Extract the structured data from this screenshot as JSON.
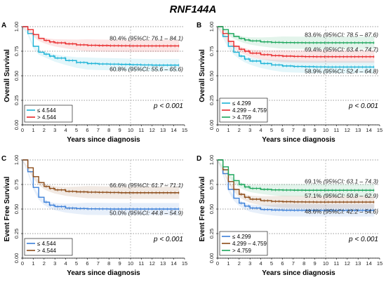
{
  "figure_title": "RNF144A",
  "chart_data": [
    {
      "panel": "A",
      "type": "line",
      "ylabel": "Overall Survival",
      "xlabel": "Years since diagnosis",
      "xlim": [
        0,
        15
      ],
      "ylim": [
        0,
        1
      ],
      "xticks": [
        "0",
        "1",
        "2",
        "3",
        "4",
        "5",
        "6",
        "7",
        "8",
        "9",
        "10",
        "11",
        "12",
        "13",
        "14",
        "15"
      ],
      "yticks": [
        "0.00",
        "0.25",
        "0.50",
        "0.75",
        "1.00"
      ],
      "pvalue": "p < 0.001",
      "legend_position": "bottom-left",
      "series": [
        {
          "name": "≤ 4.544",
          "color": "#1ab2d6",
          "x": [
            0,
            0.5,
            1,
            1.5,
            2,
            2.5,
            3,
            4,
            5,
            6,
            7,
            8,
            9,
            10,
            11,
            12,
            13,
            14,
            14.5
          ],
          "y": [
            1.0,
            0.93,
            0.8,
            0.74,
            0.72,
            0.7,
            0.68,
            0.655,
            0.635,
            0.625,
            0.62,
            0.618,
            0.616,
            0.612,
            0.61,
            0.608,
            0.608,
            0.608,
            0.608
          ]
        },
        {
          "name": "> 4.544",
          "color": "#e8282a",
          "x": [
            0,
            0.5,
            1,
            1.5,
            2,
            2.5,
            3,
            4,
            5,
            6,
            7,
            8,
            9,
            10,
            11,
            12,
            13,
            14,
            14.5
          ],
          "y": [
            1.0,
            0.97,
            0.92,
            0.88,
            0.86,
            0.845,
            0.835,
            0.825,
            0.815,
            0.81,
            0.808,
            0.806,
            0.805,
            0.804,
            0.804,
            0.804,
            0.804,
            0.804,
            0.804
          ]
        }
      ],
      "annotations": [
        {
          "pct": "80.4%",
          "ci": "(95%CI: 76.1 – 84.1)",
          "color": "#e8282a",
          "y": 0.86
        },
        {
          "pct": "60.8%",
          "ci": "(95%CI: 55.6 – 65.6)",
          "color": "#1ab2d6",
          "y": 0.545
        }
      ]
    },
    {
      "panel": "B",
      "type": "line",
      "ylabel": "Overall Survival",
      "xlabel": "Years since diagnosis",
      "xlim": [
        0,
        15
      ],
      "ylim": [
        0,
        1
      ],
      "xticks": [
        "0",
        "1",
        "2",
        "3",
        "4",
        "5",
        "6",
        "7",
        "8",
        "9",
        "10",
        "11",
        "12",
        "13",
        "14",
        "15"
      ],
      "yticks": [
        "0.00",
        "0.25",
        "0.50",
        "0.75",
        "1.00"
      ],
      "pvalue": "p < 0.001",
      "legend_position": "bottom-left",
      "series": [
        {
          "name": "≤ 4.299",
          "color": "#1ab2d6",
          "x": [
            0,
            0.5,
            1,
            1.5,
            2,
            2.5,
            3,
            4,
            5,
            6,
            7,
            8,
            9,
            10,
            11,
            12,
            13,
            14,
            14.5
          ],
          "y": [
            1.0,
            0.9,
            0.8,
            0.74,
            0.7,
            0.67,
            0.65,
            0.625,
            0.61,
            0.6,
            0.595,
            0.592,
            0.59,
            0.589,
            0.589,
            0.589,
            0.589,
            0.589,
            0.589
          ]
        },
        {
          "name": "4.299 – 4.759",
          "color": "#e8282a",
          "x": [
            0,
            0.5,
            1,
            1.5,
            2,
            2.5,
            3,
            4,
            5,
            6,
            7,
            8,
            9,
            10,
            11,
            12,
            13,
            14,
            14.5
          ],
          "y": [
            1.0,
            0.93,
            0.85,
            0.8,
            0.77,
            0.75,
            0.73,
            0.715,
            0.705,
            0.7,
            0.697,
            0.695,
            0.694,
            0.694,
            0.694,
            0.694,
            0.694,
            0.694,
            0.694
          ]
        },
        {
          "name": "> 4.759",
          "color": "#1aa55a",
          "x": [
            0,
            0.5,
            1,
            1.5,
            2,
            2.5,
            3,
            4,
            5,
            6,
            7,
            8,
            9,
            10,
            11,
            12,
            13,
            14,
            14.5
          ],
          "y": [
            1.0,
            0.97,
            0.93,
            0.9,
            0.88,
            0.865,
            0.855,
            0.845,
            0.84,
            0.838,
            0.837,
            0.836,
            0.836,
            0.836,
            0.836,
            0.836,
            0.836,
            0.836,
            0.836
          ]
        }
      ],
      "annotations": [
        {
          "pct": "83.6%",
          "ci": "(95%CI: 78.5 – 87.6)",
          "color": "#1aa55a",
          "y": 0.895
        },
        {
          "pct": "69.4%",
          "ci": "(95%CI: 63.4 – 74.7)",
          "color": "#e8282a",
          "y": 0.745
        },
        {
          "pct": "58.9%",
          "ci": "(95%CI: 52.4 – 64.8)",
          "color": "#1ab2d6",
          "y": 0.525
        }
      ]
    },
    {
      "panel": "C",
      "type": "line",
      "ylabel": "Event Free Survival",
      "xlabel": "Years since diagnosis",
      "xlim": [
        0,
        15
      ],
      "ylim": [
        0,
        1
      ],
      "xticks": [
        "0",
        "1",
        "2",
        "3",
        "4",
        "5",
        "6",
        "7",
        "8",
        "9",
        "10",
        "11",
        "12",
        "13",
        "14",
        "15"
      ],
      "yticks": [
        "0.00",
        "0.25",
        "0.50",
        "0.75",
        "1.00"
      ],
      "pvalue": "p < 0.001",
      "legend_position": "bottom-left",
      "series": [
        {
          "name": "≤ 4.544",
          "color": "#3a7fd8",
          "x": [
            0,
            0.5,
            1,
            1.5,
            2,
            2.5,
            3,
            4,
            5,
            6,
            7,
            8,
            9,
            10,
            11,
            12,
            13,
            14,
            14.5
          ],
          "y": [
            1.0,
            0.88,
            0.72,
            0.62,
            0.57,
            0.54,
            0.525,
            0.51,
            0.505,
            0.502,
            0.501,
            0.5,
            0.5,
            0.5,
            0.5,
            0.5,
            0.5,
            0.5,
            0.5
          ]
        },
        {
          "name": "> 4.544",
          "color": "#8b4a16",
          "x": [
            0,
            0.5,
            1,
            1.5,
            2,
            2.5,
            3,
            4,
            5,
            6,
            7,
            8,
            9,
            10,
            11,
            12,
            13,
            14,
            14.5
          ],
          "y": [
            1.0,
            0.92,
            0.83,
            0.77,
            0.73,
            0.71,
            0.695,
            0.68,
            0.675,
            0.672,
            0.67,
            0.668,
            0.666,
            0.666,
            0.666,
            0.666,
            0.666,
            0.666,
            0.666
          ]
        }
      ],
      "annotations": [
        {
          "pct": "66.6%",
          "ci": "(95%CI: 61.7 – 71.1)",
          "color": "#8b4a16",
          "y": 0.72
        },
        {
          "pct": "50.0%",
          "ci": "(95%CI: 44.8 – 54.9)",
          "color": "#3a7fd8",
          "y": 0.44
        }
      ]
    },
    {
      "panel": "D",
      "type": "line",
      "ylabel": "Event Free Survival",
      "xlabel": "Years since diagnosis",
      "xlim": [
        0,
        15
      ],
      "ylim": [
        0,
        1
      ],
      "xticks": [
        "0",
        "1",
        "2",
        "3",
        "4",
        "5",
        "6",
        "7",
        "8",
        "9",
        "10",
        "11",
        "12",
        "13",
        "14",
        "15"
      ],
      "yticks": [
        "0.00",
        "0.25",
        "0.50",
        "0.75",
        "1.00"
      ],
      "pvalue": "p < 0.001",
      "legend_position": "bottom-left",
      "series": [
        {
          "name": "≤ 4.299",
          "color": "#3a7fd8",
          "x": [
            0,
            0.5,
            1,
            1.5,
            2,
            2.5,
            3,
            4,
            5,
            6,
            7,
            8,
            9,
            10,
            11,
            12,
            13,
            14,
            14.5
          ],
          "y": [
            1.0,
            0.86,
            0.7,
            0.61,
            0.56,
            0.53,
            0.51,
            0.495,
            0.49,
            0.488,
            0.487,
            0.486,
            0.486,
            0.486,
            0.486,
            0.486,
            0.486,
            0.486,
            0.486
          ]
        },
        {
          "name": "4.299 – 4.759",
          "color": "#8b4a16",
          "x": [
            0,
            0.5,
            1,
            1.5,
            2,
            2.5,
            3,
            4,
            5,
            6,
            7,
            8,
            9,
            10,
            11,
            12,
            13,
            14,
            14.5
          ],
          "y": [
            1.0,
            0.9,
            0.78,
            0.7,
            0.65,
            0.62,
            0.6,
            0.585,
            0.578,
            0.575,
            0.573,
            0.572,
            0.571,
            0.571,
            0.571,
            0.571,
            0.571,
            0.571,
            0.571
          ]
        },
        {
          "name": "> 4.759",
          "color": "#1aa55a",
          "x": [
            0,
            0.5,
            1,
            1.5,
            2,
            2.5,
            3,
            4,
            5,
            6,
            7,
            8,
            9,
            10,
            11,
            12,
            13,
            14,
            14.5
          ],
          "y": [
            1.0,
            0.93,
            0.85,
            0.79,
            0.75,
            0.725,
            0.71,
            0.7,
            0.695,
            0.693,
            0.692,
            0.691,
            0.691,
            0.691,
            0.691,
            0.691,
            0.691,
            0.691,
            0.691
          ]
        }
      ],
      "annotations": [
        {
          "pct": "69.1%",
          "ci": "(95%CI: 63.1 – 74.3)",
          "color": "#1aa55a",
          "y": 0.76
        },
        {
          "pct": "57.1%",
          "ci": "(95%CI: 50.8 – 62.9)",
          "color": "#8b4a16",
          "y": 0.615
        },
        {
          "pct": "48.6%",
          "ci": "(95%CI: 42.2 – 54.6)",
          "color": "#3a7fd8",
          "y": 0.455
        }
      ]
    }
  ]
}
